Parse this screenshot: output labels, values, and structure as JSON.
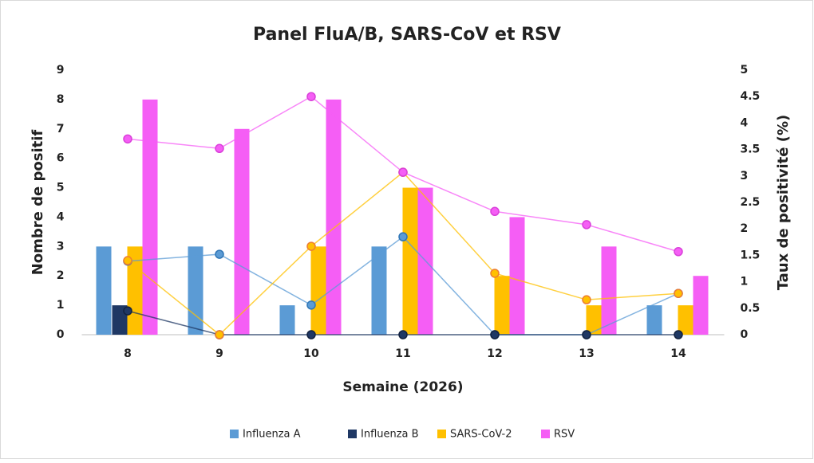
{
  "chart_data": {
    "type": "bar-line",
    "title": "Panel FluA/B, SARS-CoV et RSV",
    "xlabel": "Semaine (2026)",
    "ylabel": "Nombre de positif",
    "y2label": "Taux de positivité (%)",
    "categories": [
      "8",
      "9",
      "10",
      "11",
      "12",
      "13",
      "14"
    ],
    "series": [
      {
        "name": "Influenza A",
        "color": "#5b9bd5",
        "values": [
          3,
          3,
          1,
          3,
          0,
          0,
          1
        ],
        "y2values": [
          1.39,
          1.52,
          0.56,
          1.85,
          0,
          0,
          0.78
        ]
      },
      {
        "name": "Influenza B",
        "color": "#1f3864",
        "values": [
          1,
          0,
          0,
          0,
          0,
          0,
          0
        ],
        "y2values": [
          0.45,
          0,
          0,
          0,
          0,
          0,
          0
        ]
      },
      {
        "name": "SARS-CoV-2",
        "color": "#ffc000",
        "values": [
          3,
          0,
          3,
          5,
          2,
          1,
          1
        ],
        "y2values": [
          1.4,
          0,
          1.67,
          3.07,
          1.16,
          0.66,
          0.78
        ]
      },
      {
        "name": "RSV",
        "color": "#f55ef5",
        "values": [
          8,
          7,
          8,
          5,
          4,
          3,
          2
        ],
        "y2values": [
          3.7,
          3.52,
          4.5,
          3.07,
          2.33,
          2.08,
          1.57
        ]
      }
    ],
    "ylim": [
      0,
      9
    ],
    "yticks": [
      0,
      1,
      2,
      3,
      4,
      5,
      6,
      7,
      8,
      9
    ],
    "y2lim": [
      0,
      5
    ],
    "y2ticks": [
      0,
      0.5,
      1,
      1.5,
      2,
      2.5,
      3,
      3.5,
      4,
      4.5,
      5
    ],
    "grid": false,
    "legend": "bottom"
  }
}
